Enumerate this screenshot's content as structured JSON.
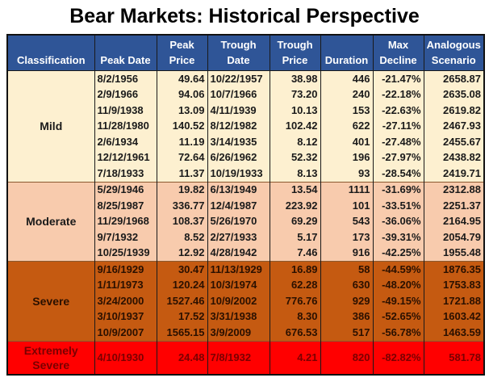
{
  "title": "Bear Markets:  Historical Perspective",
  "columns": [
    "Classification",
    "Peak Date",
    "Peak Price",
    "Trough Date",
    "Trough Price",
    "Duration",
    "Max Decline",
    "Analogous Scenario"
  ],
  "colors": {
    "header": "#2f5597",
    "mild": "#fdf0d0",
    "moderate": "#f8cbad",
    "severe": "#c55a11",
    "extremely_severe": "#ff0000"
  },
  "groups": [
    {
      "classification": "Mild",
      "rows": [
        [
          "8/2/1956",
          "49.64",
          "10/22/1957",
          "38.98",
          "446",
          "-21.47%",
          "2658.87"
        ],
        [
          "2/9/1966",
          "94.06",
          "10/7/1966",
          "73.20",
          "240",
          "-22.18%",
          "2635.08"
        ],
        [
          "11/9/1938",
          "13.09",
          "4/11/1939",
          "10.13",
          "153",
          "-22.63%",
          "2619.82"
        ],
        [
          "11/28/1980",
          "140.52",
          "8/12/1982",
          "102.42",
          "622",
          "-27.11%",
          "2467.93"
        ],
        [
          "2/6/1934",
          "11.19",
          "3/14/1935",
          "8.12",
          "401",
          "-27.48%",
          "2455.67"
        ],
        [
          "12/12/1961",
          "72.64",
          "6/26/1962",
          "52.32",
          "196",
          "-27.97%",
          "2438.82"
        ],
        [
          "7/18/1933",
          "11.37",
          "10/19/1933",
          "8.13",
          "93",
          "-28.54%",
          "2419.71"
        ]
      ]
    },
    {
      "classification": "Moderate",
      "rows": [
        [
          "5/29/1946",
          "19.82",
          "6/13/1949",
          "13.54",
          "1111",
          "-31.69%",
          "2312.88"
        ],
        [
          "8/25/1987",
          "336.77",
          "12/4/1987",
          "223.92",
          "101",
          "-33.51%",
          "2251.37"
        ],
        [
          "11/29/1968",
          "108.37",
          "5/26/1970",
          "69.29",
          "543",
          "-36.06%",
          "2164.95"
        ],
        [
          "9/7/1932",
          "8.52",
          "2/27/1933",
          "5.17",
          "173",
          "-39.31%",
          "2054.79"
        ],
        [
          "10/25/1939",
          "12.92",
          "4/28/1942",
          "7.46",
          "916",
          "-42.25%",
          "1955.48"
        ]
      ]
    },
    {
      "classification": "Severe",
      "rows": [
        [
          "9/16/1929",
          "30.47",
          "11/13/1929",
          "16.89",
          "58",
          "-44.59%",
          "1876.35"
        ],
        [
          "1/11/1973",
          "120.24",
          "10/3/1974",
          "62.28",
          "630",
          "-48.20%",
          "1753.83"
        ],
        [
          "3/24/2000",
          "1527.46",
          "10/9/2002",
          "776.76",
          "929",
          "-49.15%",
          "1721.88"
        ],
        [
          "3/10/1937",
          "17.52",
          "3/31/1938",
          "8.30",
          "386",
          "-52.65%",
          "1603.42"
        ],
        [
          "10/9/2007",
          "1565.15",
          "3/9/2009",
          "676.53",
          "517",
          "-56.78%",
          "1463.59"
        ]
      ]
    },
    {
      "classification": "Extremely Severe",
      "rows": [
        [
          "4/10/1930",
          "24.48",
          "7/8/1932",
          "4.21",
          "820",
          "-82.82%",
          "581.78"
        ]
      ]
    }
  ],
  "chart_data": {
    "type": "table",
    "title": "Bear Markets:  Historical Perspective",
    "columns": [
      "Classification",
      "Peak Date",
      "Peak Price",
      "Trough Date",
      "Trough Price",
      "Duration",
      "Max Decline",
      "Analogous Scenario"
    ],
    "rows": [
      [
        "Mild",
        "8/2/1956",
        49.64,
        "10/22/1957",
        38.98,
        446,
        "-21.47%",
        2658.87
      ],
      [
        "Mild",
        "2/9/1966",
        94.06,
        "10/7/1966",
        73.2,
        240,
        "-22.18%",
        2635.08
      ],
      [
        "Mild",
        "11/9/1938",
        13.09,
        "4/11/1939",
        10.13,
        153,
        "-22.63%",
        2619.82
      ],
      [
        "Mild",
        "11/28/1980",
        140.52,
        "8/12/1982",
        102.42,
        622,
        "-27.11%",
        2467.93
      ],
      [
        "Mild",
        "2/6/1934",
        11.19,
        "3/14/1935",
        8.12,
        401,
        "-27.48%",
        2455.67
      ],
      [
        "Mild",
        "12/12/1961",
        72.64,
        "6/26/1962",
        52.32,
        196,
        "-27.97%",
        2438.82
      ],
      [
        "Mild",
        "7/18/1933",
        11.37,
        "10/19/1933",
        8.13,
        93,
        "-28.54%",
        2419.71
      ],
      [
        "Moderate",
        "5/29/1946",
        19.82,
        "6/13/1949",
        13.54,
        1111,
        "-31.69%",
        2312.88
      ],
      [
        "Moderate",
        "8/25/1987",
        336.77,
        "12/4/1987",
        223.92,
        101,
        "-33.51%",
        2251.37
      ],
      [
        "Moderate",
        "11/29/1968",
        108.37,
        "5/26/1970",
        69.29,
        543,
        "-36.06%",
        2164.95
      ],
      [
        "Moderate",
        "9/7/1932",
        8.52,
        "2/27/1933",
        5.17,
        173,
        "-39.31%",
        2054.79
      ],
      [
        "Moderate",
        "10/25/1939",
        12.92,
        "4/28/1942",
        7.46,
        916,
        "-42.25%",
        1955.48
      ],
      [
        "Severe",
        "9/16/1929",
        30.47,
        "11/13/1929",
        16.89,
        58,
        "-44.59%",
        1876.35
      ],
      [
        "Severe",
        "1/11/1973",
        120.24,
        "10/3/1974",
        62.28,
        630,
        "-48.20%",
        1753.83
      ],
      [
        "Severe",
        "3/24/2000",
        1527.46,
        "10/9/2002",
        776.76,
        929,
        "-49.15%",
        1721.88
      ],
      [
        "Severe",
        "3/10/1937",
        17.52,
        "3/31/1938",
        8.3,
        386,
        "-52.65%",
        1603.42
      ],
      [
        "Severe",
        "10/9/2007",
        1565.15,
        "3/9/2009",
        676.53,
        517,
        "-56.78%",
        1463.59
      ],
      [
        "Extremely Severe",
        "4/10/1930",
        24.48,
        "7/8/1932",
        4.21,
        820,
        "-82.82%",
        581.78
      ]
    ]
  }
}
